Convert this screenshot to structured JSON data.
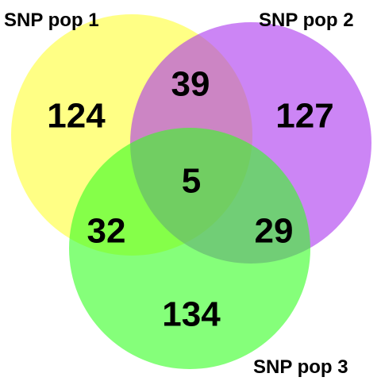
{
  "sets": [
    {
      "id": "pop1",
      "label": "SNP pop 1",
      "color": "#ffff33",
      "opacity": 0.6
    },
    {
      "id": "pop2",
      "label": "SNP pop 2",
      "color": "#aa33ee",
      "opacity": 0.6
    },
    {
      "id": "pop3",
      "label": "SNP pop 3",
      "color": "#33ff22",
      "opacity": 0.6
    }
  ],
  "regions": {
    "only_pop1": "124",
    "only_pop2": "127",
    "only_pop3": "134",
    "pop1_pop2": "39",
    "pop1_pop3": "32",
    "pop2_pop3": "29",
    "all_three": "5"
  }
}
